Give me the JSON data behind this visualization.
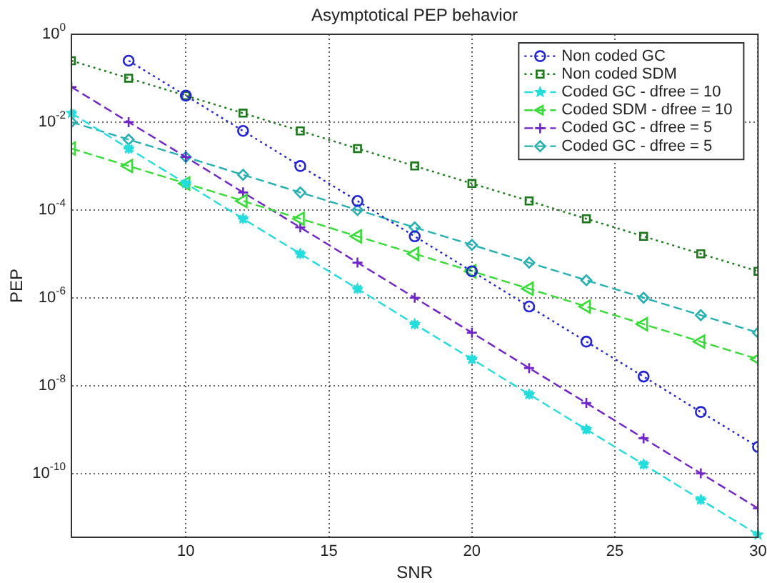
{
  "chart_data": {
    "type": "line",
    "title": "Asymptotical PEP behavior",
    "xlabel": "SNR",
    "ylabel": "PEP",
    "x": [
      6,
      8,
      10,
      12,
      14,
      16,
      18,
      20,
      22,
      24,
      26,
      28,
      30
    ],
    "xlim": [
      6,
      30
    ],
    "xticks": [
      10,
      15,
      20,
      25,
      30
    ],
    "log": "y",
    "ylim": [
      3.5e-12,
      1
    ],
    "yticks": [
      {
        "value": 1,
        "label": "10$^{0}$"
      },
      {
        "value": 0.01,
        "label": "10$^{-2}$"
      },
      {
        "value": 0.0001,
        "label": "10$^{-4}$"
      },
      {
        "value": 1e-06,
        "label": "10$^{-6}$"
      },
      {
        "value": 1e-08,
        "label": "10$^{-8}$"
      },
      {
        "value": 1e-10,
        "label": "10$^{-10}$"
      }
    ],
    "grid": true,
    "legend": "top right",
    "series": [
      {
        "name": "Non coded GC",
        "color": "#2222dd",
        "marker": "circle",
        "line_style": "dotted",
        "values": [
          null,
          0.25,
          0.04,
          0.0063,
          0.001,
          0.00016,
          2.5e-05,
          4e-06,
          6.3e-07,
          1e-07,
          1.6e-08,
          2.5e-09,
          4e-10
        ]
      },
      {
        "name": "Non coded SDM",
        "color": "#1a7a1a",
        "marker": "square",
        "line_style": "dotted",
        "values": [
          0.25,
          0.1,
          0.04,
          0.016,
          0.0063,
          0.0025,
          0.001,
          0.0004,
          0.00016,
          6.3e-05,
          2.5e-05,
          1e-05,
          4e-06
        ]
      },
      {
        "name": "Coded GC - dfree = 10",
        "color": "#22dddd",
        "marker": "star",
        "line_style": "dashed",
        "values": [
          0.016,
          0.0025,
          0.0004,
          6.3e-05,
          1e-05,
          1.6e-06,
          2.5e-07,
          4e-08,
          6.3e-09,
          1e-09,
          1.6e-10,
          2.5e-11,
          4e-12
        ]
      },
      {
        "name": "Coded SDM - dfree = 10",
        "color": "#33dd33",
        "marker": "triangle",
        "line_style": "dashed",
        "values": [
          0.0025,
          0.001,
          0.0004,
          0.00016,
          6.3e-05,
          2.5e-05,
          1e-05,
          4e-06,
          1.6e-06,
          6.3e-07,
          2.5e-07,
          1e-07,
          4e-08
        ]
      },
      {
        "name": "Coded GC - dfree = 5",
        "color": "#7022cc",
        "marker": "cross",
        "line_style": "dashed",
        "values": [
          0.063,
          0.01,
          0.0016,
          0.00025,
          4e-05,
          6.3e-06,
          1e-06,
          1.6e-07,
          2.5e-08,
          4e-09,
          6.3e-10,
          1e-10,
          1.6e-11
        ]
      },
      {
        "name": "Coded GC - dfree = 5",
        "color": "#22b0b0",
        "marker": "diamond",
        "line_style": "dashed",
        "values": [
          0.01,
          0.004,
          0.0016,
          0.00063,
          0.00025,
          0.0001,
          4e-05,
          1.6e-05,
          6.3e-06,
          2.5e-06,
          1e-06,
          4e-07,
          1.6e-07
        ]
      }
    ]
  }
}
